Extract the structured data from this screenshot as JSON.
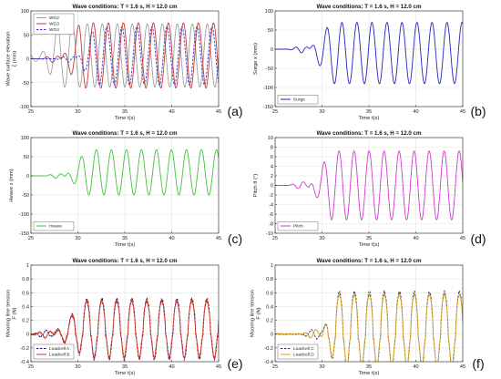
{
  "chart_data": [
    {
      "id": "a",
      "type": "line",
      "title": "Wave conditions: T = 1.6 s, H = 12.0 cm",
      "xlabel": "Time t(s)",
      "ylabel_lines": [
        "Wave surface elevation",
        "ζ (mm)"
      ],
      "xlim": [
        25,
        45
      ],
      "ylim": [
        -100,
        100
      ],
      "xticks": [
        25,
        30,
        35,
        40,
        45
      ],
      "yticks": [
        -100,
        -50,
        0,
        50,
        100
      ],
      "grid": true,
      "legend_position": "top-left",
      "panel_label": "(a)",
      "series": [
        {
          "name": "WG2",
          "color": "#a0a0a0",
          "dash": "solid",
          "signal": {
            "onset": 25.8,
            "ramp": 2.2,
            "amp": 68,
            "offset": 5,
            "period": 1.6,
            "phase": 0.0,
            "crest_bias": 0.15
          }
        },
        {
          "name": "WG3",
          "color": "#c43a2e",
          "dash": "solid",
          "signal": {
            "onset": 28.2,
            "ramp": 2.0,
            "amp": 70,
            "offset": 5,
            "period": 1.6,
            "phase": 0.6,
            "crest_bias": 0.15
          }
        },
        {
          "name": "WG4",
          "color": "#3a3ac8",
          "dash": "dashed",
          "signal": {
            "onset": 29.8,
            "ramp": 2.0,
            "amp": 62,
            "offset": 5,
            "period": 1.6,
            "phase": 1.2,
            "crest_bias": 0.1
          }
        }
      ]
    },
    {
      "id": "b",
      "type": "line",
      "title": "Wave conditions: T = 1.6 s, H = 12.0 cm",
      "xlabel": "Time t(s)",
      "ylabel_lines": [
        "Surge  x (mm)"
      ],
      "xlim": [
        25,
        45
      ],
      "ylim": [
        -150,
        100
      ],
      "xticks": [
        25,
        30,
        35,
        40,
        45
      ],
      "yticks": [
        -150,
        -100,
        -50,
        0,
        50,
        100
      ],
      "grid": true,
      "legend_position": "bottom-left",
      "panel_label": "(b)",
      "series": [
        {
          "name": "Surge",
          "color": "#2323c0",
          "dash": "solid",
          "signal": {
            "onset": 28.6,
            "ramp": 2.4,
            "amp": 80,
            "offset": -10,
            "period": 1.6,
            "phase": 0.3,
            "crest_bias": 0.0
          }
        }
      ]
    },
    {
      "id": "c",
      "type": "line",
      "title": "Wave conditions: T = 1.6 s, H = 12.0 cm",
      "xlabel": "Time t(s)",
      "ylabel_lines": [
        "Heave  z (mm)"
      ],
      "xlim": [
        25,
        45
      ],
      "ylim": [
        -150,
        100
      ],
      "xticks": [
        25,
        30,
        35,
        40,
        45
      ],
      "yticks": [
        -150,
        -100,
        -50,
        0,
        50,
        100
      ],
      "grid": true,
      "legend_position": "bottom-left",
      "panel_label": "(c)",
      "series": [
        {
          "name": "Heave",
          "color": "#3ec43e",
          "dash": "solid",
          "signal": {
            "onset": 28.6,
            "ramp": 2.4,
            "amp": 60,
            "offset": 8,
            "period": 1.6,
            "phase": 0.9,
            "crest_bias": 0.1
          }
        }
      ]
    },
    {
      "id": "d",
      "type": "line",
      "title": "Wave conditions: T = 1.6 s, H = 12.0 cm",
      "xlabel": "Time t(s)",
      "ylabel_lines": [
        "Pitch  θ (°)"
      ],
      "xlim": [
        25,
        45
      ],
      "ylim": [
        -10,
        10
      ],
      "xticks": [
        25,
        30,
        35,
        40,
        45
      ],
      "yticks": [
        -10,
        -8,
        -6,
        -4,
        -2,
        0,
        2,
        4,
        6,
        8,
        10
      ],
      "grid": true,
      "legend_position": "bottom-left",
      "panel_label": "(d)",
      "series": [
        {
          "name": "Pitch",
          "color": "#d03ad0",
          "dash": "solid",
          "signal": {
            "onset": 28.6,
            "ramp": 2.4,
            "amp": 7.2,
            "offset": 0.0,
            "period": 1.6,
            "phase": 1.5,
            "crest_bias": 0.0
          }
        }
      ]
    },
    {
      "id": "e",
      "type": "line",
      "title": "Wave conditions: T = 1.6 s, H = 12.0 cm",
      "xlabel": "Time t(s)",
      "ylabel_lines": [
        "Mooring line tension",
        "F (N)"
      ],
      "xlim": [
        25,
        45
      ],
      "ylim": [
        -0.4,
        1.0
      ],
      "xticks": [
        25,
        30,
        35,
        40,
        45
      ],
      "yticks": [
        -0.4,
        -0.2,
        0,
        0.2,
        0.4,
        0.6,
        0.8,
        1.0
      ],
      "grid": true,
      "legend_position": "bottom-left",
      "panel_label": "(e)",
      "series": [
        {
          "name": "Loadcell A",
          "color": "#1a1a5a",
          "dash": "dashed",
          "signal": {
            "onset": 27.4,
            "ramp": 3.5,
            "amp": 0.5,
            "offset": 0.0,
            "period": 1.6,
            "phase": 0.2,
            "crest_bias": 0.8,
            "noise": 0.03
          }
        },
        {
          "name": "Loadcell B",
          "color": "#d03428",
          "dash": "solid",
          "signal": {
            "onset": 27.4,
            "ramp": 3.5,
            "amp": 0.48,
            "offset": 0.0,
            "period": 1.6,
            "phase": 0.25,
            "crest_bias": 0.8,
            "noise": 0.03
          }
        }
      ]
    },
    {
      "id": "f",
      "type": "line",
      "title": "Wave conditions: T = 1.6 s, H = 12.0 cm",
      "xlabel": "Time t(s)",
      "ylabel_lines": [
        "Mooring line tension",
        "F (N)"
      ],
      "xlim": [
        25,
        45
      ],
      "ylim": [
        -0.4,
        1.0
      ],
      "xticks": [
        25,
        30,
        35,
        40,
        45
      ],
      "yticks": [
        -0.4,
        -0.2,
        0,
        0.2,
        0.4,
        0.6,
        0.8,
        1.0
      ],
      "grid": true,
      "legend_position": "bottom-left",
      "panel_label": "(f)",
      "series": [
        {
          "name": "Loadcell C",
          "color": "#2a3a5a",
          "dash": "dashed",
          "signal": {
            "onset": 30.0,
            "ramp": 1.5,
            "amp": 0.66,
            "offset": -0.05,
            "period": 1.6,
            "phase": 0.6,
            "crest_bias": 0.9,
            "noise": 0.02
          }
        },
        {
          "name": "Loadcell D",
          "color": "#d7a020",
          "dash": "solid",
          "signal": {
            "onset": 30.0,
            "ramp": 1.5,
            "amp": 0.62,
            "offset": -0.05,
            "period": 1.6,
            "phase": 0.62,
            "crest_bias": 0.9,
            "noise": 0.02
          }
        }
      ]
    }
  ]
}
